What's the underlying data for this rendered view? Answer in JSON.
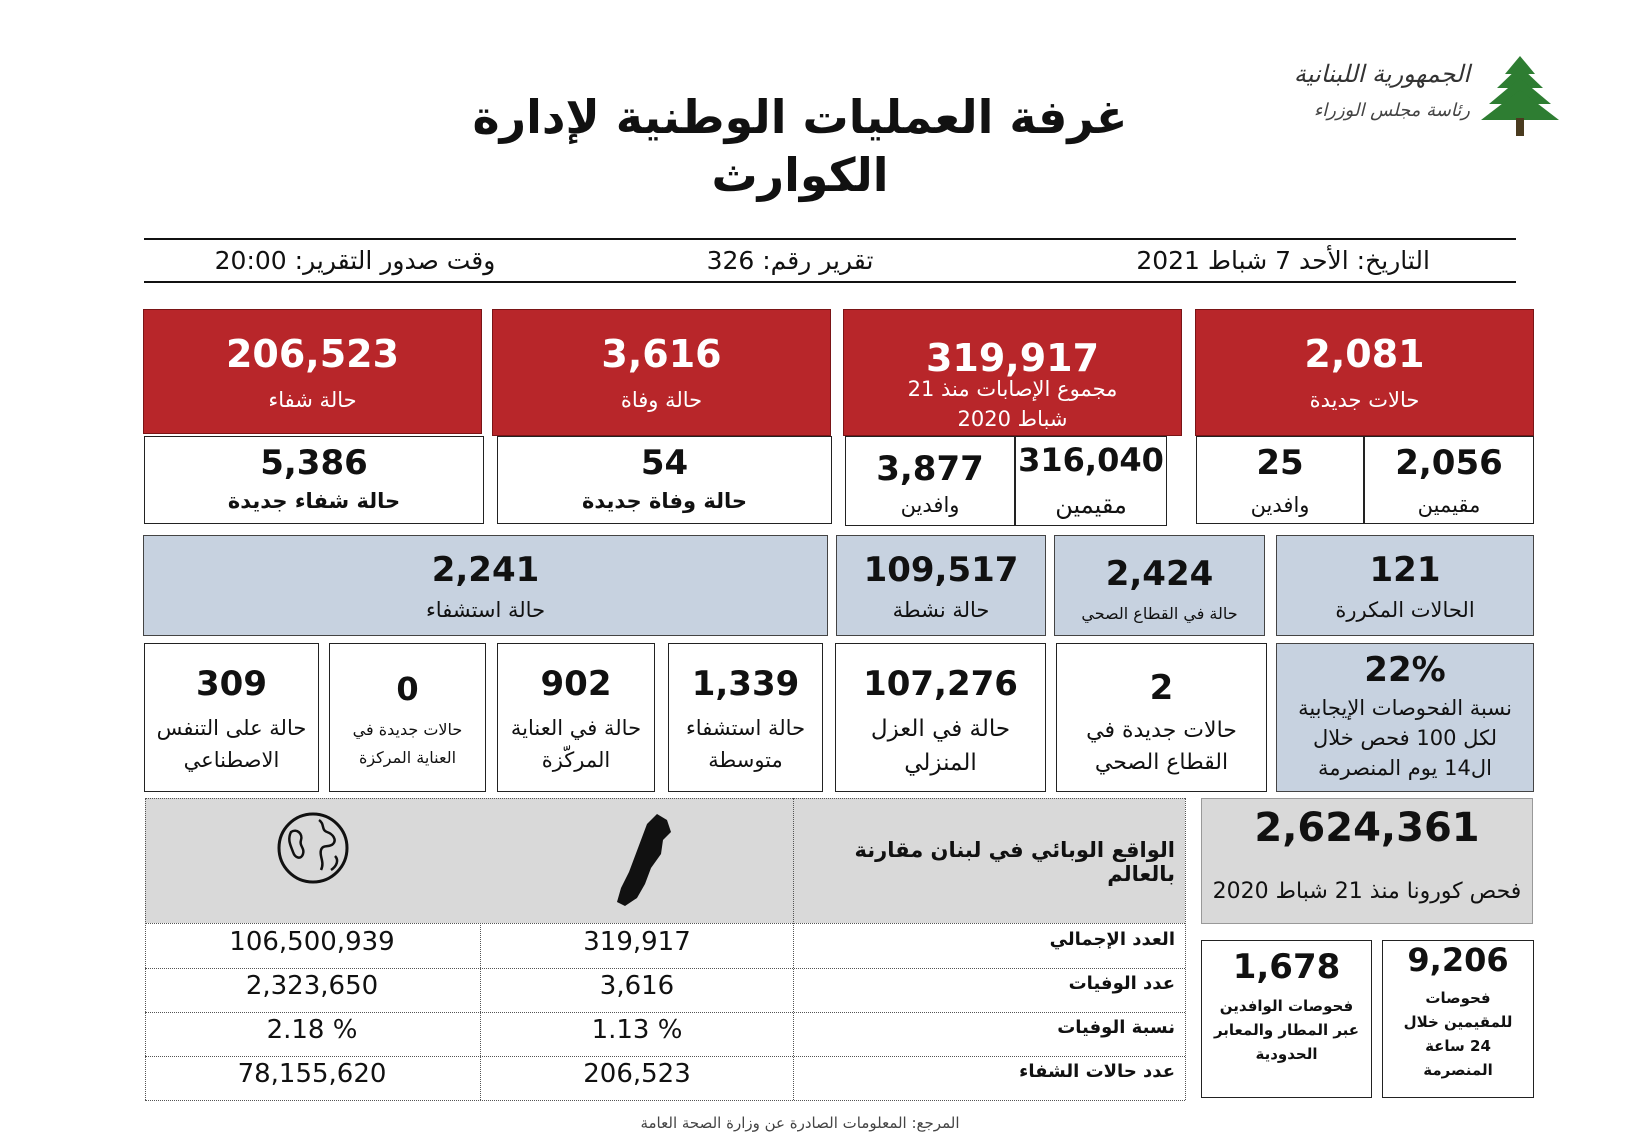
{
  "header": {
    "title_line1": "غرفة العمليات الوطنية لإدارة",
    "title_line2": "الكوارث",
    "logo_text_line1": "الجمهورية اللبنانية",
    "logo_text_line2": "رئاسة مجلس الوزراء",
    "logo_icon": "cedar-tree-icon"
  },
  "info_bar": {
    "date": "التاريخ: الأحد 7 شباط 2021",
    "report_number": "تقرير رقم: 326",
    "report_time": "وقت صدور التقرير: 20:00"
  },
  "red_row": {
    "recovered": {
      "value": "206,523",
      "label": "حالة شفاء"
    },
    "deaths": {
      "value": "3,616",
      "label": "حالة وفاة"
    },
    "total": {
      "value": "319,917",
      "label": "مجموع الإصابات منذ 21 شباط 2020"
    },
    "new_cases": {
      "value": "2,081",
      "label": "حالات جديدة"
    }
  },
  "white_row": {
    "new_recovered": {
      "value": "5,386",
      "label": "حالة شفاء جديدة"
    },
    "new_deaths": {
      "value": "54",
      "label": "حالة وفاة جديدة"
    },
    "total_expats": {
      "value": "3,877",
      "label": "وافدين"
    },
    "total_residents": {
      "value": "316,040",
      "label": "مقيمين"
    },
    "new_expats": {
      "value": "25",
      "label": "وافدين"
    },
    "new_residents": {
      "value": "2,056",
      "label": "مقيمين"
    }
  },
  "blue_row": {
    "hospitalized": {
      "value": "2,241",
      "label": "حالة استشفاء"
    },
    "active": {
      "value": "109,517",
      "label": "حالة نشطة"
    },
    "health_sector": {
      "value": "2,424",
      "label": "حالة في القطاع الصحي"
    },
    "repeated": {
      "value": "121",
      "label": "الحالات المكررة"
    }
  },
  "detail_row": {
    "ventilator": {
      "value": "309",
      "label1": "حالة على التنفس",
      "label2": "الاصطناعي"
    },
    "new_icu": {
      "value": "0",
      "label1": "حالات جديدة في",
      "label2": "العناية المركزة"
    },
    "icu": {
      "value": "902",
      "label1": "حالة في العناية",
      "label2": "المركّزة"
    },
    "medium": {
      "value": "1,339",
      "label1": "حالة استشفاء",
      "label2": "متوسطة"
    },
    "home_isolation": {
      "value": "107,276",
      "label1": "حالة في العزل",
      "label2": "المنزلي"
    },
    "new_health_sector": {
      "value": "2",
      "label1": "حالات جديدة في",
      "label2": "القطاع الصحي"
    },
    "positivity": {
      "value": "22%",
      "label1": "نسبة الفحوصات الإيجابية",
      "label2": "لكل 100 فحص خلال",
      "label3": "ال14 يوم المنصرمة"
    }
  },
  "comparison": {
    "title": "الواقع الوبائي في لبنان مقارنة بالعالم",
    "world_icon": "globe-icon",
    "lebanon_icon": "lebanon-map-icon",
    "rows": [
      {
        "label": "العدد الإجمالي",
        "lebanon": "319,917",
        "world": "106,500,939"
      },
      {
        "label": "عدد الوفيات",
        "lebanon": "3,616",
        "world": "2,323,650"
      },
      {
        "label": "نسبة الوفيات",
        "lebanon": "1.13 %",
        "world": "2.18 %"
      },
      {
        "label": "عدد حالات الشفاء",
        "lebanon": "206,523",
        "world": "78,155,620"
      }
    ]
  },
  "tests": {
    "total": {
      "value": "2,624,361",
      "label": "فحص كورونا منذ 21 شباط 2020"
    },
    "expat_tests": {
      "value": "1,678",
      "label1": "فحوصات الوافدين",
      "label2": "عبر المطار والمعابر",
      "label3": "الحدودية"
    },
    "resident_tests": {
      "value": "9,206",
      "label1": "فحوصات",
      "label2": "للمقيمين خلال",
      "label3": "24 ساعة",
      "label4": "المنصرمة"
    }
  },
  "footer": {
    "source": "المرجع: المعلومات الصادرة عن وزارة الصحة العامة"
  }
}
